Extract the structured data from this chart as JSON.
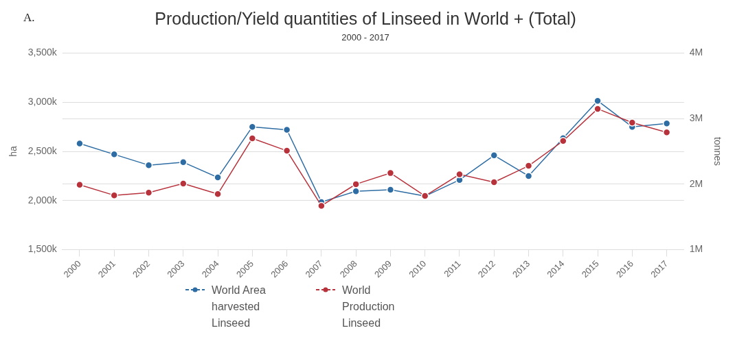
{
  "chart_data": {
    "type": "line",
    "title": "Production/Yield quantities of Linseed in World + (Total)",
    "subtitle": "2000 - 2017",
    "ylabel": "ha",
    "y2label": "tonnes",
    "annotations": [
      "A."
    ],
    "categories": [
      "2000",
      "2001",
      "2002",
      "2003",
      "2004",
      "2005",
      "2006",
      "2007",
      "2008",
      "2009",
      "2010",
      "2011",
      "2012",
      "2013",
      "2014",
      "2015",
      "2016",
      "2017"
    ],
    "series": [
      {
        "name": "World Area harvested Linseed",
        "color": "#2e6da4",
        "values": [
          2580000,
          2470000,
          2360000,
          2390000,
          2235000,
          2750000,
          2720000,
          1985000,
          2095000,
          2110000,
          2045000,
          2210000,
          2460000,
          2250000,
          2635000,
          3015000,
          2750000,
          2785000
        ]
      },
      {
        "name": "World Production Linseed",
        "color": "#b8323c",
        "axis": "y2",
        "values": [
          1990000,
          1830000,
          1870000,
          2010000,
          1850000,
          2700000,
          2510000,
          1670000,
          2000000,
          2170000,
          1820000,
          2150000,
          2030000,
          2280000,
          2660000,
          3150000,
          2940000,
          2790000
        ]
      }
    ],
    "ylim": [
      1500000,
      3500000
    ],
    "yticks": [
      {
        "value": 1500000,
        "label": "1,500k"
      },
      {
        "value": 2000000,
        "label": "2,000k"
      },
      {
        "value": 2500000,
        "label": "2,500k"
      },
      {
        "value": 3000000,
        "label": "3,000k"
      },
      {
        "value": 3500000,
        "label": "3,500k"
      }
    ],
    "y2lim": [
      1000000,
      4000000
    ],
    "y2ticks": [
      {
        "value": 1000000,
        "label": "1M"
      },
      {
        "value": 2000000,
        "label": "2M"
      },
      {
        "value": 3000000,
        "label": "3M"
      },
      {
        "value": 4000000,
        "label": "4M"
      }
    ],
    "grid": "y",
    "legend": "bottom",
    "marker": "circle"
  }
}
